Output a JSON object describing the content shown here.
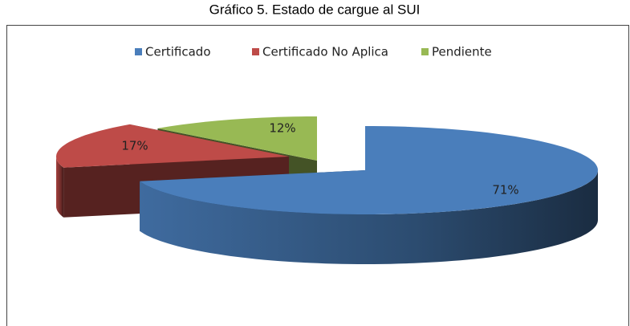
{
  "chart_data": {
    "type": "pie3d",
    "title": "Gráfico 5. Estado de cargue al SUI",
    "categories": [
      "Certificado",
      "Certificado No Aplica",
      "Pendiente"
    ],
    "values": [
      71,
      17,
      12
    ],
    "value_labels": [
      "71%",
      "17%",
      "12%"
    ],
    "colors": [
      "#4a7ebb",
      "#be4b48",
      "#98b954"
    ],
    "legend": "top"
  }
}
